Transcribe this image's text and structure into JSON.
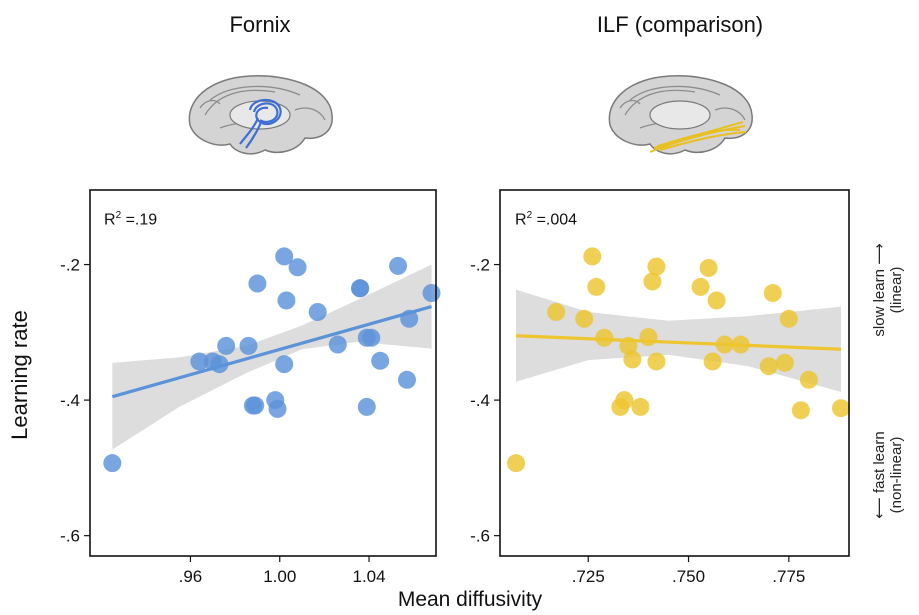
{
  "panels": [
    {
      "title": "Fornix",
      "r2_label": "R",
      "r2_sup": "2",
      "r2_value": " =.19"
    },
    {
      "title": "ILF (comparison)",
      "r2_label": "R",
      "r2_sup": "2",
      "r2_value": " =.004"
    }
  ],
  "axes": {
    "ylabel": "Learning rate",
    "xlabel": "Mean diffusivity"
  },
  "annotations": {
    "slow_line1": "slow learn",
    "slow_line2": "(linear)",
    "fast_line1": "fast learn",
    "fast_line2": "(non-linear)"
  },
  "colors": {
    "fornix": "#5b93d9",
    "ilf": "#edc52f",
    "ci_band": "#d9d9d9"
  },
  "chart_data": [
    {
      "type": "scatter",
      "title": "Fornix",
      "annotation": "R2 = .19",
      "xlim": [
        0.915,
        1.07
      ],
      "ylim": [
        -0.63,
        -0.09
      ],
      "x_ticks": [
        0.96,
        1.0,
        1.04
      ],
      "x_tick_labels": [
        ".96",
        "1.00",
        "1.04"
      ],
      "y_ticks": [
        -0.2,
        -0.4,
        -0.6
      ],
      "y_tick_labels": [
        "-.2",
        "-.4",
        "-.6"
      ],
      "points": [
        [
          0.925,
          -0.493
        ],
        [
          0.964,
          -0.343
        ],
        [
          0.97,
          -0.343
        ],
        [
          0.973,
          -0.347
        ],
        [
          0.976,
          -0.32
        ],
        [
          0.986,
          -0.32
        ],
        [
          0.988,
          -0.408
        ],
        [
          0.989,
          -0.408
        ],
        [
          0.99,
          -0.228
        ],
        [
          0.998,
          -0.4
        ],
        [
          0.999,
          -0.413
        ],
        [
          1.002,
          -0.188
        ],
        [
          1.002,
          -0.347
        ],
        [
          1.003,
          -0.253
        ],
        [
          1.008,
          -0.204
        ],
        [
          1.017,
          -0.27
        ],
        [
          1.026,
          -0.318
        ],
        [
          1.036,
          -0.235
        ],
        [
          1.036,
          -0.235
        ],
        [
          1.039,
          -0.308
        ],
        [
          1.041,
          -0.308
        ],
        [
          1.039,
          -0.41
        ],
        [
          1.045,
          -0.342
        ],
        [
          1.053,
          -0.202
        ],
        [
          1.057,
          -0.37
        ],
        [
          1.058,
          -0.28
        ],
        [
          1.068,
          -0.242
        ]
      ],
      "fit_line": [
        [
          0.925,
          -0.395
        ],
        [
          1.068,
          -0.262
        ]
      ],
      "ci_upper": [
        [
          0.925,
          -0.345
        ],
        [
          0.955,
          -0.337
        ],
        [
          0.985,
          -0.32
        ],
        [
          1.01,
          -0.29
        ],
        [
          1.035,
          -0.252
        ],
        [
          1.068,
          -0.2
        ]
      ],
      "ci_lower": [
        [
          0.925,
          -0.473
        ],
        [
          0.955,
          -0.41
        ],
        [
          0.985,
          -0.36
        ],
        [
          1.01,
          -0.325
        ],
        [
          1.035,
          -0.314
        ],
        [
          1.068,
          -0.324
        ]
      ]
    },
    {
      "type": "scatter",
      "title": "ILF (comparison)",
      "annotation": "R2 = .004",
      "xlim": [
        0.703,
        0.79
      ],
      "ylim": [
        -0.63,
        -0.09
      ],
      "x_ticks": [
        0.725,
        0.75,
        0.775
      ],
      "x_tick_labels": [
        ".725",
        ".750",
        ".775"
      ],
      "y_ticks": [
        -0.2,
        -0.4,
        -0.6
      ],
      "y_tick_labels": [
        "-.2",
        "-.4",
        "-.6"
      ],
      "points": [
        [
          0.707,
          -0.493
        ],
        [
          0.717,
          -0.27
        ],
        [
          0.724,
          -0.28
        ],
        [
          0.726,
          -0.188
        ],
        [
          0.727,
          -0.233
        ],
        [
          0.729,
          -0.308
        ],
        [
          0.733,
          -0.41
        ],
        [
          0.734,
          -0.4
        ],
        [
          0.735,
          -0.32
        ],
        [
          0.736,
          -0.34
        ],
        [
          0.738,
          -0.41
        ],
        [
          0.74,
          -0.307
        ],
        [
          0.741,
          -0.225
        ],
        [
          0.742,
          -0.203
        ],
        [
          0.742,
          -0.343
        ],
        [
          0.753,
          -0.233
        ],
        [
          0.755,
          -0.205
        ],
        [
          0.756,
          -0.343
        ],
        [
          0.757,
          -0.253
        ],
        [
          0.759,
          -0.318
        ],
        [
          0.763,
          -0.318
        ],
        [
          0.77,
          -0.35
        ],
        [
          0.771,
          -0.242
        ],
        [
          0.774,
          -0.345
        ],
        [
          0.775,
          -0.28
        ],
        [
          0.778,
          -0.415
        ],
        [
          0.78,
          -0.37
        ],
        [
          0.788,
          -0.412
        ]
      ],
      "fit_line": [
        [
          0.707,
          -0.305
        ],
        [
          0.788,
          -0.325
        ]
      ],
      "ci_upper": [
        [
          0.707,
          -0.237
        ],
        [
          0.725,
          -0.27
        ],
        [
          0.745,
          -0.283
        ],
        [
          0.765,
          -0.276
        ],
        [
          0.788,
          -0.262
        ]
      ],
      "ci_lower": [
        [
          0.707,
          -0.373
        ],
        [
          0.725,
          -0.341
        ],
        [
          0.745,
          -0.333
        ],
        [
          0.765,
          -0.35
        ],
        [
          0.788,
          -0.388
        ]
      ]
    }
  ]
}
